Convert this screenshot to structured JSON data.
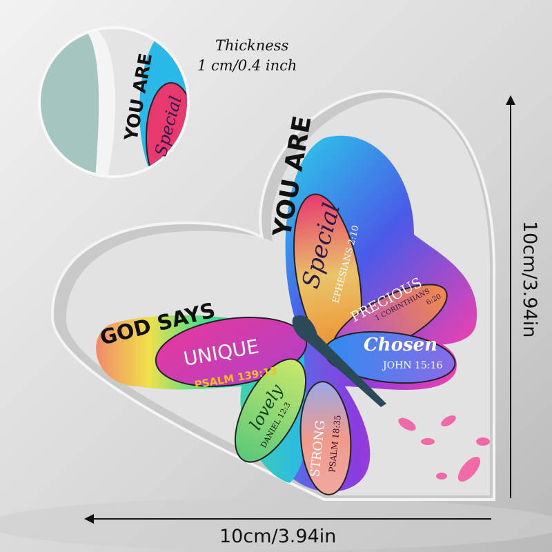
{
  "thickness": {
    "label": "Thickness",
    "value": "1 cm/0.4 inch"
  },
  "dimensions": {
    "width": "10cm/3.94in",
    "height": "10cm/3.94in"
  },
  "heart": {
    "you_are": "YOU ARE",
    "god_says": "GOD SAYS",
    "petals": [
      {
        "word": "Special",
        "verse": "EPHESIANS 2:10"
      },
      {
        "word": "PRECIOUS",
        "verse": "1 CORINTHIANS",
        "verse2": "6:20"
      },
      {
        "word": "Chosen",
        "verse": "JOHN 15:16"
      },
      {
        "word": "UNIQUE",
        "verse": "PSALM 139:13"
      },
      {
        "word": "lovely",
        "verse": "DANIEL 12:3"
      },
      {
        "word": "STRONG",
        "verse": "PSALM 18:35"
      }
    ]
  },
  "inset": {
    "you_are": "YOU ARE",
    "word": "Special"
  },
  "colors": {
    "background": "#d9d9d9",
    "acrylic": "#e8e8e8",
    "pink": "#e8399a",
    "blue": "#3a7bea",
    "purple": "#8a3be0"
  }
}
